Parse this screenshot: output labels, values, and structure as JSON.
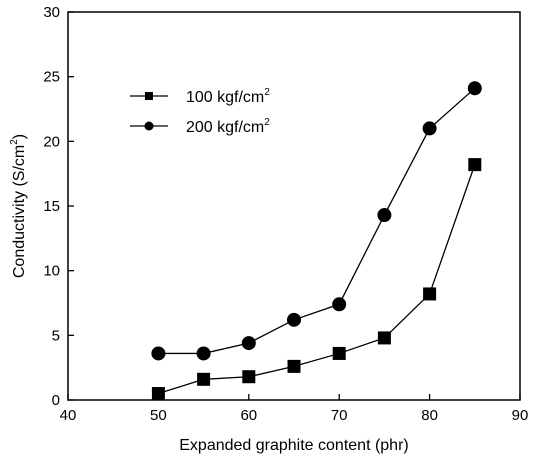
{
  "chart_data": {
    "type": "line",
    "xlabel": "Expanded graphite content (phr)",
    "ylabel_main": "Conductivity (S/cm",
    "ylabel_sup": "2",
    "ylabel_close": ")",
    "xlim": [
      40,
      90
    ],
    "ylim": [
      0,
      30
    ],
    "x_ticks": [
      "40",
      "50",
      "60",
      "70",
      "80",
      "90"
    ],
    "y_ticks": [
      "0",
      "5",
      "10",
      "15",
      "20",
      "25",
      "30"
    ],
    "grid": false,
    "legend_position": "upper-left",
    "series": [
      {
        "name": "100 kgf/cm",
        "name_sup": "2",
        "marker": "square",
        "color": "#000000",
        "x": [
          50,
          55,
          60,
          65,
          70,
          75,
          80,
          85
        ],
        "y": [
          0.5,
          1.6,
          1.8,
          2.6,
          3.6,
          4.8,
          8.2,
          18.2
        ]
      },
      {
        "name": "200 kgf/cm",
        "name_sup": "2",
        "marker": "circle",
        "color": "#000000",
        "x": [
          50,
          55,
          60,
          65,
          70,
          75,
          80,
          85
        ],
        "y": [
          3.6,
          3.6,
          4.4,
          6.2,
          7.4,
          14.3,
          21.0,
          24.1
        ]
      }
    ]
  }
}
